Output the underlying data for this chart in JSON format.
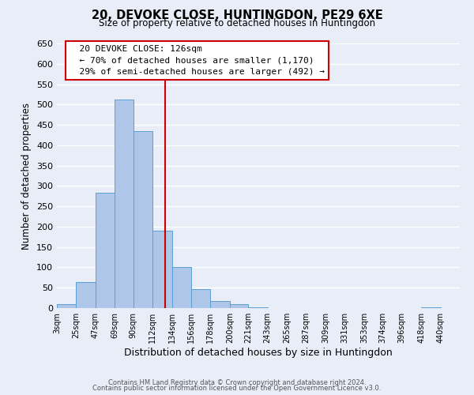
{
  "title": "20, DEVOKE CLOSE, HUNTINGDON, PE29 6XE",
  "subtitle": "Size of property relative to detached houses in Huntingdon",
  "xlabel": "Distribution of detached houses by size in Huntingdon",
  "ylabel": "Number of detached properties",
  "bar_left_edges": [
    3,
    25,
    47,
    69,
    90,
    112,
    134,
    156,
    178,
    200,
    221,
    243,
    265,
    287,
    309,
    331,
    353,
    374,
    396,
    418
  ],
  "bar_heights": [
    10,
    65,
    283,
    512,
    435,
    191,
    101,
    46,
    18,
    10,
    2,
    0,
    0,
    0,
    0,
    0,
    0,
    0,
    0,
    2
  ],
  "bar_widths": [
    22,
    22,
    22,
    21,
    22,
    22,
    22,
    22,
    22,
    21,
    22,
    22,
    22,
    22,
    22,
    22,
    21,
    22,
    22,
    22
  ],
  "tick_labels": [
    "3sqm",
    "25sqm",
    "47sqm",
    "69sqm",
    "90sqm",
    "112sqm",
    "134sqm",
    "156sqm",
    "178sqm",
    "200sqm",
    "221sqm",
    "243sqm",
    "265sqm",
    "287sqm",
    "309sqm",
    "331sqm",
    "353sqm",
    "374sqm",
    "396sqm",
    "418sqm",
    "440sqm"
  ],
  "tick_positions": [
    3,
    25,
    47,
    69,
    90,
    112,
    134,
    156,
    178,
    200,
    221,
    243,
    265,
    287,
    309,
    331,
    353,
    374,
    396,
    418,
    440
  ],
  "bar_color": "#aec6e8",
  "bar_edge_color": "#5a9fd4",
  "vline_x": 126,
  "vline_color": "#cc0000",
  "ylim": [
    0,
    650
  ],
  "xlim": [
    3,
    462
  ],
  "yticks": [
    0,
    50,
    100,
    150,
    200,
    250,
    300,
    350,
    400,
    450,
    500,
    550,
    600,
    650
  ],
  "annotation_title": "20 DEVOKE CLOSE: 126sqm",
  "annotation_line1": "← 70% of detached houses are smaller (1,170)",
  "annotation_line2": "29% of semi-detached houses are larger (492) →",
  "annotation_box_color": "#ffffff",
  "annotation_box_edge": "#cc0000",
  "footer1": "Contains HM Land Registry data © Crown copyright and database right 2024.",
  "footer2": "Contains public sector information licensed under the Open Government Licence v3.0.",
  "bg_color": "#e8edf8",
  "grid_color": "#ffffff"
}
